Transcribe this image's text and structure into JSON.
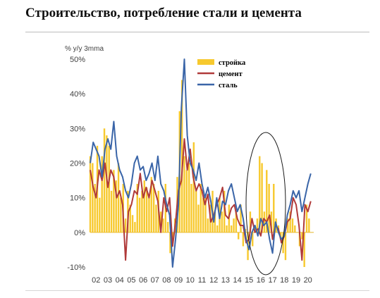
{
  "header": {
    "title": "Строительство, потребление стали и цемента"
  },
  "chart_data": {
    "type": "bar",
    "ylabel": "% y/y 3mma",
    "ylim": [
      -10,
      50
    ],
    "yticks": [
      -10,
      0,
      10,
      20,
      30,
      40,
      50
    ],
    "ytick_labels": [
      "-10%",
      "0%",
      "10%",
      "20%",
      "30%",
      "40%",
      "50%"
    ],
    "xlim": [
      2002.0,
      2021.0
    ],
    "xtick_labels": [
      "02",
      "03",
      "04",
      "05",
      "06",
      "07",
      "08",
      "09",
      "10",
      "11",
      "12",
      "13",
      "14",
      "15",
      "16",
      "17",
      "18",
      "19",
      "20"
    ],
    "grid": "none",
    "legend_placement": "top-center",
    "annotation": "ellipse around 2016-2017",
    "colors": {
      "stroyka": "#f7c92e",
      "cement": "#b03a3a",
      "stal": "#3a65a8"
    },
    "series": [
      {
        "name": "стройка",
        "kind": "bar",
        "x": [
          2002.0,
          2002.2,
          2002.4,
          2002.6,
          2002.8,
          2003.0,
          2003.2,
          2003.4,
          2003.6,
          2003.8,
          2004.0,
          2004.2,
          2004.4,
          2004.6,
          2004.8,
          2005.0,
          2005.2,
          2005.4,
          2005.6,
          2005.8,
          2006.0,
          2006.2,
          2006.4,
          2006.6,
          2006.8,
          2007.0,
          2007.2,
          2007.4,
          2007.6,
          2007.8,
          2008.0,
          2008.2,
          2008.4,
          2008.6,
          2008.8,
          2009.0,
          2009.2,
          2009.4,
          2009.6,
          2009.8,
          2010.0,
          2010.2,
          2010.4,
          2010.6,
          2010.8,
          2011.0,
          2011.2,
          2011.4,
          2011.6,
          2011.8,
          2012.0,
          2012.2,
          2012.4,
          2012.6,
          2012.8,
          2013.0,
          2013.2,
          2013.4,
          2013.6,
          2013.8,
          2014.0,
          2014.2,
          2014.4,
          2014.6,
          2014.8,
          2015.0,
          2015.2,
          2015.4,
          2015.6,
          2015.8,
          2016.0,
          2016.2,
          2016.4,
          2016.6,
          2016.8,
          2017.0,
          2017.2,
          2017.4,
          2017.6,
          2017.8,
          2018.0,
          2018.2,
          2018.4,
          2018.6,
          2018.8,
          2019.0,
          2019.2,
          2019.4,
          2019.6,
          2019.8,
          2020.0,
          2020.2,
          2020.4,
          2020.6
        ],
        "values": [
          22,
          20,
          14,
          25,
          10,
          22,
          30,
          28,
          25,
          12,
          18,
          15,
          20,
          10,
          14,
          4,
          12,
          8,
          5,
          3,
          14,
          10,
          12,
          15,
          13,
          10,
          16,
          14,
          8,
          12,
          6,
          4,
          14,
          3,
          -6,
          -4,
          4,
          16,
          35,
          44,
          22,
          18,
          20,
          14,
          26,
          12,
          8,
          14,
          10,
          10,
          4,
          8,
          12,
          6,
          2,
          10,
          6,
          12,
          2,
          8,
          2,
          4,
          6,
          -2,
          8,
          -4,
          1,
          -8,
          6,
          -4,
          2,
          4,
          22,
          20,
          6,
          18,
          14,
          6,
          14,
          4,
          2,
          -2,
          -6,
          -8,
          4,
          6,
          4,
          2,
          0,
          -4,
          -2,
          -10,
          8,
          4
        ]
      },
      {
        "name": "цемент",
        "kind": "line",
        "x": [
          2002.0,
          2002.25,
          2002.5,
          2002.75,
          2003.0,
          2003.25,
          2003.5,
          2003.75,
          2004.0,
          2004.25,
          2004.5,
          2004.75,
          2005.0,
          2005.25,
          2005.5,
          2005.75,
          2006.0,
          2006.25,
          2006.5,
          2006.75,
          2007.0,
          2007.25,
          2007.5,
          2007.75,
          2008.0,
          2008.25,
          2008.5,
          2008.75,
          2009.0,
          2009.25,
          2009.5,
          2009.75,
          2010.0,
          2010.25,
          2010.5,
          2010.75,
          2011.0,
          2011.25,
          2011.5,
          2011.75,
          2012.0,
          2012.25,
          2012.5,
          2012.75,
          2013.0,
          2013.25,
          2013.5,
          2013.75,
          2014.0,
          2014.25,
          2014.5,
          2014.75,
          2015.0,
          2015.25,
          2015.5,
          2015.75,
          2016.0,
          2016.25,
          2016.5,
          2016.75,
          2017.0,
          2017.25,
          2017.5,
          2017.75,
          2018.0,
          2018.25,
          2018.5,
          2018.75,
          2019.0,
          2019.25,
          2019.5,
          2019.75,
          2020.0,
          2020.25,
          2020.5,
          2020.75
        ],
        "values": [
          18,
          13,
          10,
          18,
          15,
          20,
          13,
          18,
          16,
          10,
          12,
          8,
          -8,
          6,
          8,
          12,
          11,
          17,
          10,
          13,
          10,
          15,
          12,
          9,
          0,
          10,
          6,
          10,
          -4,
          3,
          12,
          15,
          27,
          18,
          24,
          16,
          12,
          14,
          12,
          8,
          11,
          3,
          5,
          8,
          10,
          13,
          5,
          4,
          7,
          8,
          4,
          2,
          2,
          -3,
          -2,
          4,
          0,
          1,
          -1,
          4,
          3,
          5,
          -2,
          2,
          1,
          -3,
          -1,
          3,
          4,
          10,
          8,
          2,
          -8,
          8,
          6,
          9
        ]
      },
      {
        "name": "сталь",
        "kind": "line",
        "x": [
          2002.0,
          2002.25,
          2002.5,
          2002.75,
          2003.0,
          2003.25,
          2003.5,
          2003.75,
          2004.0,
          2004.25,
          2004.5,
          2004.75,
          2005.0,
          2005.25,
          2005.5,
          2005.75,
          2006.0,
          2006.25,
          2006.5,
          2006.75,
          2007.0,
          2007.25,
          2007.5,
          2007.75,
          2008.0,
          2008.25,
          2008.5,
          2008.75,
          2009.0,
          2009.25,
          2009.5,
          2009.75,
          2010.0,
          2010.25,
          2010.5,
          2010.75,
          2011.0,
          2011.25,
          2011.5,
          2011.75,
          2012.0,
          2012.25,
          2012.5,
          2012.75,
          2013.0,
          2013.25,
          2013.5,
          2013.75,
          2014.0,
          2014.25,
          2014.5,
          2014.75,
          2015.0,
          2015.25,
          2015.5,
          2015.75,
          2016.0,
          2016.25,
          2016.5,
          2016.75,
          2017.0,
          2017.25,
          2017.5,
          2017.75,
          2018.0,
          2018.25,
          2018.5,
          2018.75,
          2019.0,
          2019.25,
          2019.5,
          2019.75,
          2020.0,
          2020.25,
          2020.5,
          2020.75
        ],
        "values": [
          20,
          26,
          24,
          22,
          16,
          24,
          27,
          24,
          32,
          22,
          18,
          16,
          12,
          10,
          14,
          20,
          22,
          18,
          19,
          15,
          17,
          20,
          15,
          22,
          14,
          12,
          8,
          5,
          -10,
          -2,
          8,
          36,
          50,
          28,
          20,
          18,
          15,
          20,
          14,
          10,
          13,
          9,
          3,
          10,
          4,
          9,
          8,
          12,
          14,
          10,
          6,
          8,
          4,
          -2,
          -5,
          0,
          2,
          -1,
          4,
          2,
          3,
          -2,
          -6,
          3,
          0,
          -2,
          -1,
          5,
          8,
          12,
          10,
          12,
          6,
          10,
          14,
          17
        ]
      }
    ]
  }
}
